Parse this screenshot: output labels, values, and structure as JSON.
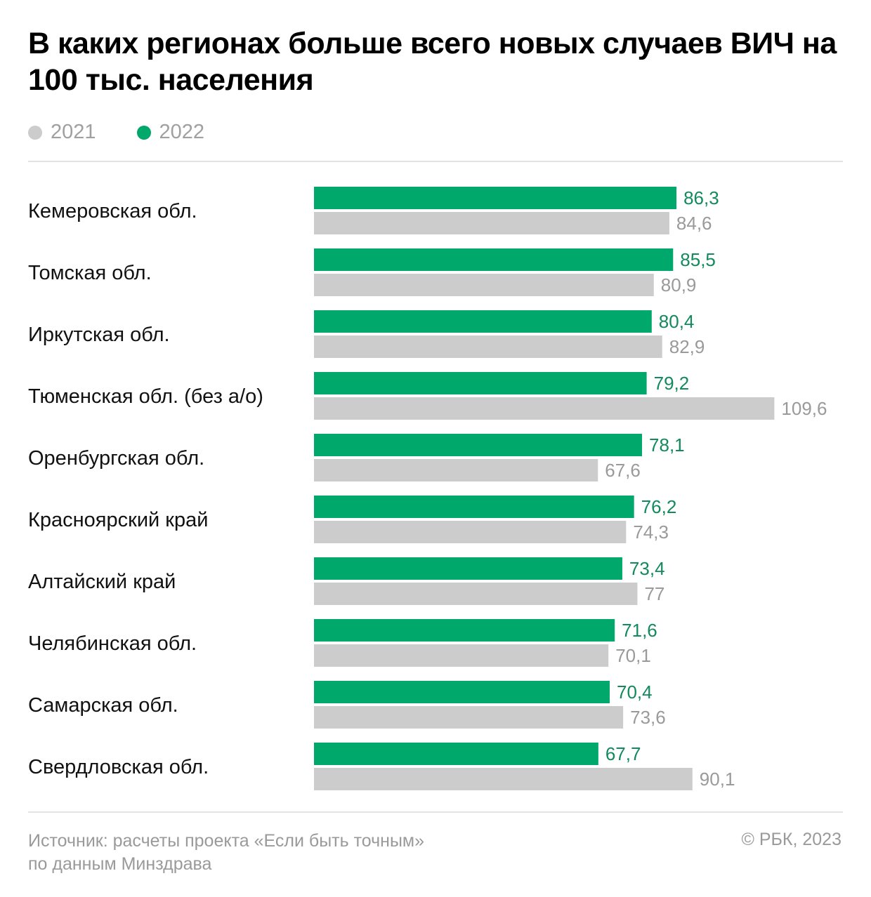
{
  "chart_data": {
    "type": "bar",
    "orientation": "horizontal",
    "title": "В каких регионах больше всего новых случаев ВИЧ на 100 тыс. населения",
    "xlabel": "",
    "ylabel": "",
    "grid": false,
    "legend_position": "top-left",
    "categories": [
      "Кемеровская обл.",
      "Томская обл.",
      "Иркутская обл.",
      "Тюменская обл. (без а/о)",
      "Оренбургская обл.",
      "Красноярский край",
      "Алтайский край",
      "Челябинская обл.",
      "Самарская обл.",
      "Свердловская обл."
    ],
    "series": [
      {
        "name": "2022",
        "color": "#00a86b",
        "values": [
          86.3,
          85.5,
          80.4,
          79.2,
          78.1,
          76.2,
          73.4,
          71.6,
          70.4,
          67.7
        ],
        "labels": [
          "86,3",
          "85,5",
          "80,4",
          "79,2",
          "78,1",
          "76,2",
          "73,4",
          "71,6",
          "70,4",
          "67,7"
        ]
      },
      {
        "name": "2021",
        "color": "#cccccc",
        "values": [
          84.6,
          80.9,
          82.9,
          109.6,
          67.6,
          74.3,
          77,
          70.1,
          73.6,
          90.1
        ],
        "labels": [
          "84,6",
          "80,9",
          "82,9",
          "109,6",
          "67,6",
          "74,3",
          "77",
          "70,1",
          "73,6",
          "90,1"
        ]
      }
    ],
    "xlim": [
      0,
      110
    ]
  },
  "legend": [
    {
      "label": "2021",
      "color": "#cccccc"
    },
    {
      "label": "2022",
      "color": "#00a86b"
    }
  ],
  "footer": {
    "source_line1": "Источник: расчеты проекта «Если быть точным»",
    "source_line2": "по данным Минздрава",
    "copyright": "© РБК, 2023"
  },
  "label_colors": {
    "2022": "#138a5e",
    "2021": "#9a9a9a"
  }
}
